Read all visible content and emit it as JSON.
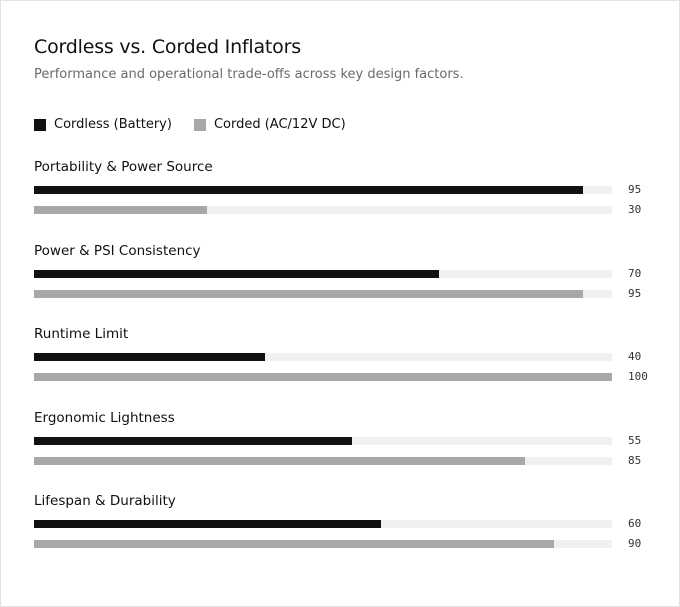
{
  "chart_data": {
    "type": "bar",
    "orientation": "horizontal",
    "title": "Cordless vs. Corded Inflators",
    "subtitle": "Performance and operational trade-offs across key design factors.",
    "legend_position": "top-left",
    "grid": false,
    "xlim": [
      0,
      100
    ],
    "categories": [
      "Portability & Power Source",
      "Power & PSI Consistency",
      "Runtime Limit",
      "Ergonomic Lightness",
      "Lifespan & Durability"
    ],
    "series": [
      {
        "name": "Cordless (Battery)",
        "color": "#111111",
        "values": [
          95,
          70,
          40,
          55,
          60
        ]
      },
      {
        "name": "Corded (AC/12V DC)",
        "color": "#a8a8a8",
        "values": [
          30,
          95,
          100,
          85,
          90
        ]
      }
    ],
    "track_color": "#f0f0f0"
  }
}
